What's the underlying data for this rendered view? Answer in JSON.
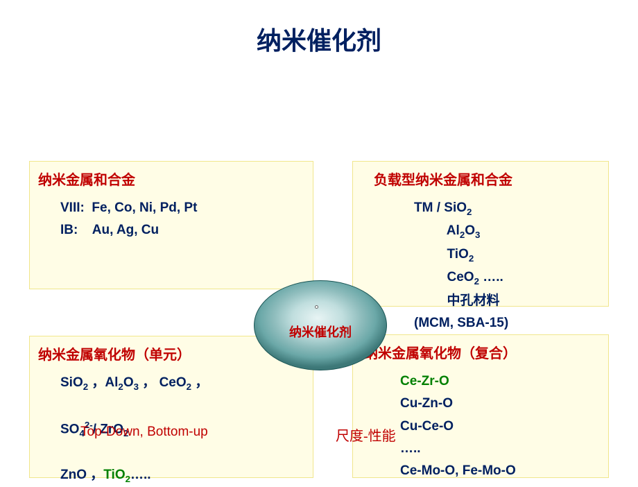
{
  "title": "纳米催化剂",
  "center": {
    "label": "纳米催化剂"
  },
  "colors": {
    "title": "#002060",
    "header": "#c00000",
    "navy": "#002060",
    "green": "#008000",
    "red": "#c00000",
    "box_bg": "#fffde6",
    "box_border": "#f0e68c",
    "page_bg": "#ffffff"
  },
  "boxes": {
    "tl": {
      "header": "纳米金属和合金",
      "lines": [
        {
          "text": "VIII:  Fe, Co, Ni, Pd, Pt",
          "color": "navy"
        },
        {
          "text": "",
          "color": "navy"
        },
        {
          "text": "IB:    Au, Ag, Cu",
          "color": "navy"
        }
      ]
    },
    "tr": {
      "header": "负载型纳米金属和合金",
      "lines": [
        {
          "parts": [
            {
              "t": "TM / SiO",
              "c": "navy"
            },
            {
              "t": "2",
              "c": "navy",
              "sub": true
            }
          ]
        },
        {
          "parts": [
            {
              "t": "         Al",
              "c": "navy"
            },
            {
              "t": "2",
              "c": "navy",
              "sub": true
            },
            {
              "t": "O",
              "c": "navy"
            },
            {
              "t": "3",
              "c": "navy",
              "sub": true
            }
          ]
        },
        {
          "parts": [
            {
              "t": "         TiO",
              "c": "navy"
            },
            {
              "t": "2",
              "c": "navy",
              "sub": true
            }
          ]
        },
        {
          "parts": [
            {
              "t": "         CeO",
              "c": "navy"
            },
            {
              "t": "2",
              "c": "navy",
              "sub": true
            },
            {
              "t": " …..",
              "c": "navy"
            }
          ]
        },
        {
          "parts": [
            {
              "t": "         中孔材料",
              "c": "navy"
            }
          ]
        },
        {
          "parts": [
            {
              "t": "(MCM, SBA-15)",
              "c": "navy"
            }
          ]
        }
      ]
    },
    "bl": {
      "header": "纳米金属氧化物（单元）",
      "lines": [
        {
          "parts": [
            {
              "t": "SiO",
              "c": "navy"
            },
            {
              "t": "2",
              "c": "navy",
              "sub": true
            },
            {
              "t": " ，Al",
              "c": "navy"
            },
            {
              "t": "2",
              "c": "navy",
              "sub": true
            },
            {
              "t": "O",
              "c": "navy"
            },
            {
              "t": "3",
              "c": "navy",
              "sub": true
            },
            {
              "t": " ， CeO",
              "c": "navy"
            },
            {
              "t": "2",
              "c": "navy",
              "sub": true
            },
            {
              "t": " ，",
              "c": "navy"
            }
          ]
        },
        {
          "parts": [
            {
              "t": " ",
              "c": "navy"
            }
          ]
        },
        {
          "parts": [
            {
              "t": "SO",
              "c": "navy"
            },
            {
              "t": "4",
              "c": "navy",
              "sub": true
            },
            {
              "t": "2-",
              "c": "navy",
              "sup": true
            },
            {
              "t": "/ ZrO",
              "c": "navy"
            },
            {
              "t": "2",
              "c": "navy",
              "sub": true
            }
          ]
        },
        {
          "parts": [
            {
              "t": " ",
              "c": "navy"
            }
          ]
        },
        {
          "parts": [
            {
              "t": "ZnO ，",
              "c": "navy"
            },
            {
              "t": "TiO",
              "c": "green"
            },
            {
              "t": "2",
              "c": "green",
              "sub": true
            },
            {
              "t": "…..",
              "c": "navy"
            }
          ]
        }
      ]
    },
    "br": {
      "header": "纳米金属氧化物（复合）",
      "lines": [
        {
          "parts": [
            {
              "t": "Ce-Zr-O",
              "c": "green"
            }
          ]
        },
        {
          "parts": [
            {
              "t": "Cu-Zn-O",
              "c": "navy"
            }
          ]
        },
        {
          "parts": [
            {
              "t": "Cu-Ce-O",
              "c": "navy"
            }
          ]
        },
        {
          "parts": [
            {
              "t": "…..",
              "c": "navy"
            }
          ]
        },
        {
          "parts": [
            {
              "t": "Ce-Mo-O, Fe-Mo-O",
              "c": "navy"
            }
          ]
        }
      ]
    }
  },
  "footer": {
    "left": "Top-Down, Bottom-up",
    "right": "尺度-性能"
  }
}
